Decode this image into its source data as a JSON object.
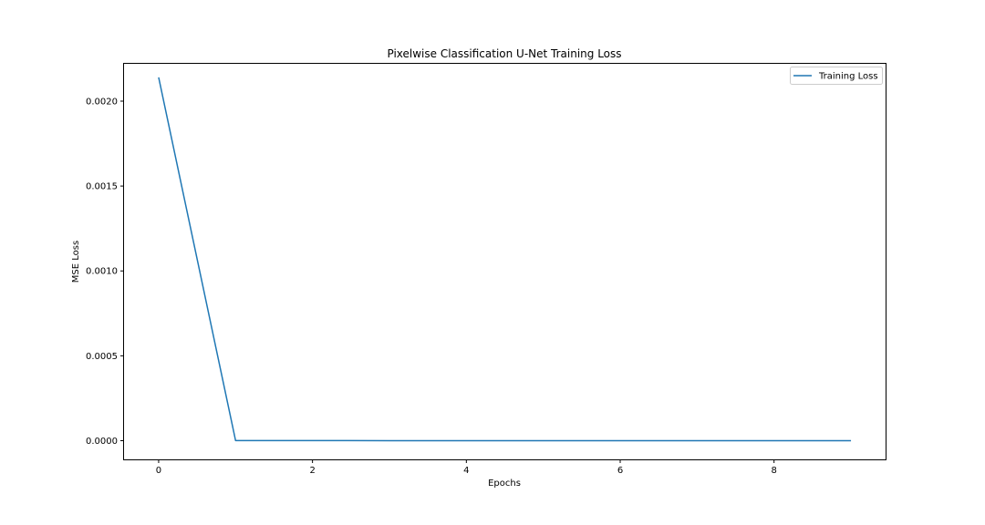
{
  "chart_data": {
    "type": "line",
    "title": "Pixelwise Classification U-Net Training Loss",
    "xlabel": "Epochs",
    "ylabel": "MSE Loss",
    "xlim": [
      -0.45,
      9.45
    ],
    "ylim": [
      -0.00011,
      0.00222
    ],
    "xticks": [
      0,
      2,
      4,
      6,
      8
    ],
    "xtick_labels": [
      "0",
      "2",
      "4",
      "6",
      "8"
    ],
    "yticks": [
      0.0,
      0.0005,
      0.001,
      0.0015,
      0.002
    ],
    "ytick_labels": [
      "0.0000",
      "0.0005",
      "0.0010",
      "0.0015",
      "0.0020"
    ],
    "grid": false,
    "legend_position": "upper right",
    "series": [
      {
        "name": "Training Loss",
        "color": "#1f77b4",
        "x": [
          0,
          1,
          2,
          3,
          4,
          5,
          6,
          7,
          8,
          9
        ],
        "values": [
          0.00214,
          8e-07,
          5e-07,
          3e-07,
          2e-07,
          2e-07,
          1e-07,
          1e-07,
          1e-07,
          1e-07
        ]
      }
    ]
  }
}
